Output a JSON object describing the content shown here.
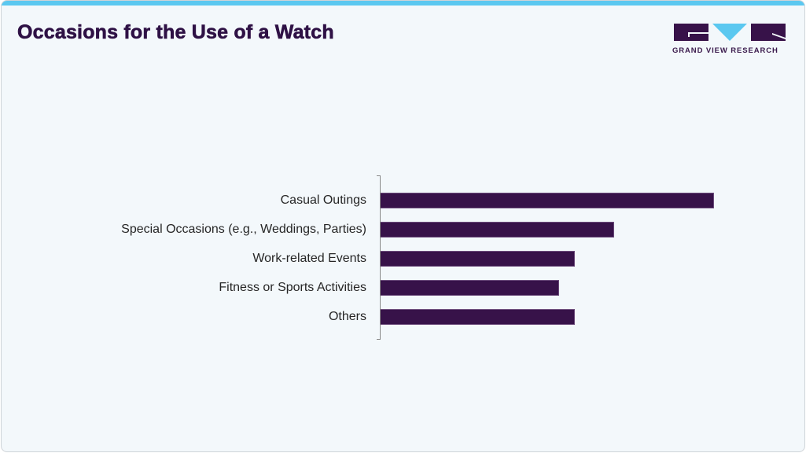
{
  "header": {
    "title": "Occasions for the Use of a Watch",
    "logo_text": "GRAND VIEW RESEARCH"
  },
  "colors": {
    "accent_bar": "#5bc8f0",
    "title": "#2e1145",
    "bar": "#371249",
    "background": "#f3f8fb"
  },
  "chart_data": {
    "type": "bar",
    "orientation": "horizontal",
    "title": "Occasions for the Use of a Watch",
    "categories": [
      "Casual Outings",
      "Special Occasions (e.g., Weddings, Parties)",
      "Work-related Events",
      "Fitness or Sports Activities",
      "Others"
    ],
    "values": [
      424,
      297,
      247,
      227,
      247
    ],
    "value_unit": "relative bar length (px, no axis values shown)",
    "xlabel": "",
    "ylabel": "",
    "grid": false,
    "legend": "none"
  }
}
